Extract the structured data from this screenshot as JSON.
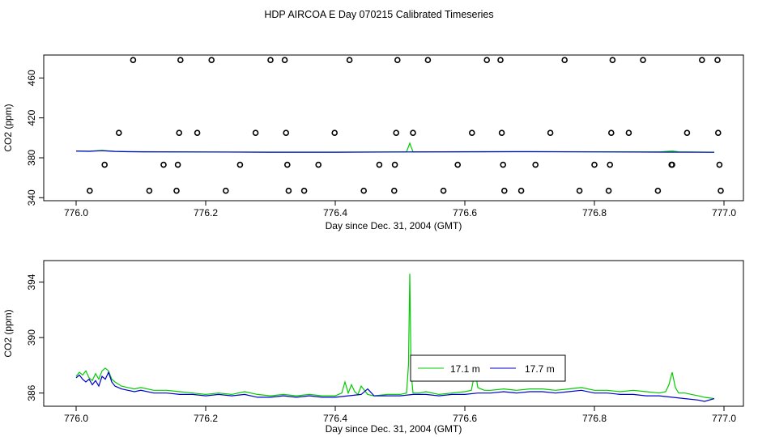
{
  "title": "HDP AIRCOA E  Day 070215  Calibrated Timeseries",
  "chart_data": [
    {
      "type": "scatter",
      "xlabel": "Day since Dec. 31, 2004 (GMT)",
      "ylabel": "CO2 (ppm)",
      "xlim": [
        775.95,
        777.03
      ],
      "ylim": [
        337,
        483
      ],
      "xticks": [
        776.0,
        776.2,
        776.4,
        776.6,
        776.8,
        777.0
      ],
      "xtick_labels": [
        "776.0",
        "776.2",
        "776.4",
        "776.6",
        "776.8",
        "777.0"
      ],
      "yticks": [
        340,
        380,
        420,
        460
      ],
      "ytick_labels": [
        "340",
        "380",
        "420",
        "460"
      ],
      "points": [
        [
          776.021,
          347
        ],
        [
          776.044,
          373
        ],
        [
          776.066,
          405
        ],
        [
          776.088,
          478
        ],
        [
          776.113,
          347
        ],
        [
          776.135,
          373
        ],
        [
          776.155,
          347
        ],
        [
          776.157,
          373
        ],
        [
          776.159,
          405
        ],
        [
          776.161,
          478
        ],
        [
          776.187,
          405
        ],
        [
          776.209,
          478
        ],
        [
          776.231,
          347
        ],
        [
          776.253,
          373
        ],
        [
          776.277,
          405
        ],
        [
          776.3,
          478
        ],
        [
          776.322,
          478
        ],
        [
          776.324,
          405
        ],
        [
          776.326,
          373
        ],
        [
          776.328,
          347
        ],
        [
          776.352,
          347
        ],
        [
          776.374,
          373
        ],
        [
          776.399,
          405
        ],
        [
          776.422,
          478
        ],
        [
          776.444,
          347
        ],
        [
          776.468,
          373
        ],
        [
          776.491,
          347
        ],
        [
          776.492,
          373
        ],
        [
          776.494,
          405
        ],
        [
          776.496,
          478
        ],
        [
          776.52,
          405
        ],
        [
          776.543,
          478
        ],
        [
          776.567,
          347
        ],
        [
          776.589,
          373
        ],
        [
          776.611,
          405
        ],
        [
          776.634,
          478
        ],
        [
          776.655,
          478
        ],
        [
          776.657,
          405
        ],
        [
          776.659,
          373
        ],
        [
          776.661,
          347
        ],
        [
          776.687,
          347
        ],
        [
          776.709,
          373
        ],
        [
          776.732,
          405
        ],
        [
          776.754,
          478
        ],
        [
          776.777,
          347
        ],
        [
          776.8,
          373
        ],
        [
          776.822,
          347
        ],
        [
          776.824,
          373
        ],
        [
          776.826,
          405
        ],
        [
          776.828,
          478
        ],
        [
          776.853,
          405
        ],
        [
          776.875,
          478
        ],
        [
          776.898,
          347
        ],
        [
          776.919,
          373
        ],
        [
          776.92,
          373
        ],
        [
          776.943,
          405
        ],
        [
          776.966,
          478
        ],
        [
          776.99,
          478
        ],
        [
          776.991,
          405
        ],
        [
          776.993,
          373
        ],
        [
          776.995,
          347
        ]
      ],
      "series": [
        {
          "name": "17.1 m",
          "color": "#00cc00",
          "x": [
            776.0,
            776.02,
            776.04,
            776.06,
            776.08,
            776.1,
            776.2,
            776.3,
            776.4,
            776.5,
            776.51,
            776.515,
            776.52,
            776.53,
            776.6,
            776.7,
            776.8,
            776.9,
            776.92,
            776.93,
            776.985
          ],
          "y": [
            386.8,
            386.6,
            387.4,
            386.5,
            386.2,
            386.1,
            385.8,
            385.7,
            385.7,
            385.9,
            386.0,
            394.6,
            386.0,
            385.9,
            386.1,
            386.2,
            386.0,
            385.9,
            386.8,
            386.0,
            385.6
          ]
        },
        {
          "name": "17.7 m",
          "color": "#0000cc",
          "x": [
            776.0,
            776.02,
            776.04,
            776.06,
            776.08,
            776.1,
            776.2,
            776.3,
            776.4,
            776.5,
            776.6,
            776.7,
            776.8,
            776.9,
            776.985
          ],
          "y": [
            386.8,
            386.5,
            387.1,
            386.4,
            386.1,
            386.0,
            385.8,
            385.6,
            385.6,
            385.8,
            386.0,
            386.1,
            385.9,
            385.7,
            385.5
          ]
        }
      ]
    },
    {
      "type": "line",
      "xlabel": "Day since Dec. 31, 2004 (GMT)",
      "ylabel": "CO2 (ppm)",
      "xlim": [
        775.95,
        777.03
      ],
      "ylim": [
        385.05,
        395.55
      ],
      "xticks": [
        776.0,
        776.2,
        776.4,
        776.6,
        776.8,
        777.0
      ],
      "xtick_labels": [
        "776.0",
        "776.2",
        "776.4",
        "776.6",
        "776.8",
        "777.0"
      ],
      "yticks": [
        386,
        390,
        394
      ],
      "ytick_labels": [
        "386",
        "390",
        "394"
      ],
      "legend": {
        "position": "center-right",
        "entries": [
          "17.1 m",
          "17.7 m"
        ]
      },
      "series": [
        {
          "name": "17.1 m",
          "color": "#00cc00",
          "x": [
            776.0,
            776.005,
            776.01,
            776.015,
            776.02,
            776.025,
            776.03,
            776.035,
            776.04,
            776.045,
            776.05,
            776.055,
            776.06,
            776.07,
            776.08,
            776.09,
            776.1,
            776.12,
            776.14,
            776.16,
            776.18,
            776.2,
            776.22,
            776.24,
            776.26,
            776.28,
            776.3,
            776.32,
            776.34,
            776.36,
            776.38,
            776.4,
            776.41,
            776.415,
            776.42,
            776.425,
            776.43,
            776.435,
            776.44,
            776.45,
            776.46,
            776.48,
            776.5,
            776.51,
            776.513,
            776.515,
            776.517,
            776.52,
            776.53,
            776.54,
            776.56,
            776.58,
            776.6,
            776.61,
            776.613,
            776.616,
            776.62,
            776.63,
            776.64,
            776.66,
            776.68,
            776.7,
            776.72,
            776.74,
            776.76,
            776.78,
            776.8,
            776.82,
            776.84,
            776.86,
            776.88,
            776.9,
            776.91,
            776.915,
            776.92,
            776.925,
            776.93,
            776.94,
            776.95,
            776.96,
            776.97,
            776.985
          ],
          "y": [
            387.2,
            387.5,
            387.3,
            387.6,
            387.1,
            386.9,
            387.4,
            387.0,
            387.6,
            387.8,
            387.6,
            387.0,
            386.8,
            386.5,
            386.4,
            386.3,
            386.4,
            386.2,
            386.2,
            386.1,
            386.0,
            385.9,
            386.0,
            385.9,
            386.1,
            385.9,
            385.8,
            385.9,
            385.8,
            385.9,
            385.8,
            385.8,
            386.0,
            386.8,
            386.0,
            386.6,
            386.1,
            385.9,
            386.5,
            385.9,
            385.8,
            385.9,
            385.9,
            386.0,
            388.0,
            394.6,
            387.5,
            386.0,
            386.0,
            386.1,
            385.9,
            386.0,
            386.1,
            386.2,
            386.9,
            387.6,
            386.4,
            386.2,
            386.2,
            386.3,
            386.2,
            386.3,
            386.3,
            386.2,
            386.3,
            386.4,
            386.2,
            386.2,
            386.1,
            386.2,
            386.1,
            386.0,
            386.1,
            386.6,
            387.5,
            386.4,
            386.0,
            386.0,
            385.9,
            385.8,
            385.7,
            385.6
          ]
        },
        {
          "name": "17.7 m",
          "color": "#0000cc",
          "x": [
            776.0,
            776.005,
            776.01,
            776.015,
            776.02,
            776.025,
            776.03,
            776.035,
            776.04,
            776.045,
            776.05,
            776.055,
            776.06,
            776.07,
            776.08,
            776.09,
            776.1,
            776.12,
            776.14,
            776.16,
            776.18,
            776.2,
            776.22,
            776.24,
            776.26,
            776.28,
            776.3,
            776.32,
            776.34,
            776.36,
            776.38,
            776.4,
            776.42,
            776.44,
            776.45,
            776.46,
            776.48,
            776.5,
            776.52,
            776.54,
            776.56,
            776.58,
            776.6,
            776.62,
            776.64,
            776.66,
            776.68,
            776.7,
            776.72,
            776.74,
            776.76,
            776.78,
            776.8,
            776.82,
            776.84,
            776.86,
            776.88,
            776.9,
            776.92,
            776.94,
            776.96,
            776.97,
            776.985
          ],
          "y": [
            387.1,
            387.3,
            387.0,
            386.8,
            387.0,
            386.6,
            386.9,
            386.5,
            387.2,
            387.0,
            387.5,
            386.8,
            386.5,
            386.3,
            386.2,
            386.1,
            386.2,
            386.0,
            386.0,
            385.9,
            385.9,
            385.8,
            385.9,
            385.8,
            385.9,
            385.7,
            385.7,
            385.8,
            385.7,
            385.8,
            385.7,
            385.7,
            385.8,
            385.9,
            386.3,
            385.8,
            385.8,
            385.8,
            385.9,
            385.9,
            385.8,
            385.9,
            385.9,
            386.0,
            386.0,
            386.1,
            386.0,
            386.1,
            386.1,
            386.0,
            386.1,
            386.2,
            386.0,
            386.0,
            385.9,
            385.9,
            385.8,
            385.8,
            385.7,
            385.6,
            385.5,
            385.4,
            385.6
          ]
        }
      ]
    }
  ]
}
